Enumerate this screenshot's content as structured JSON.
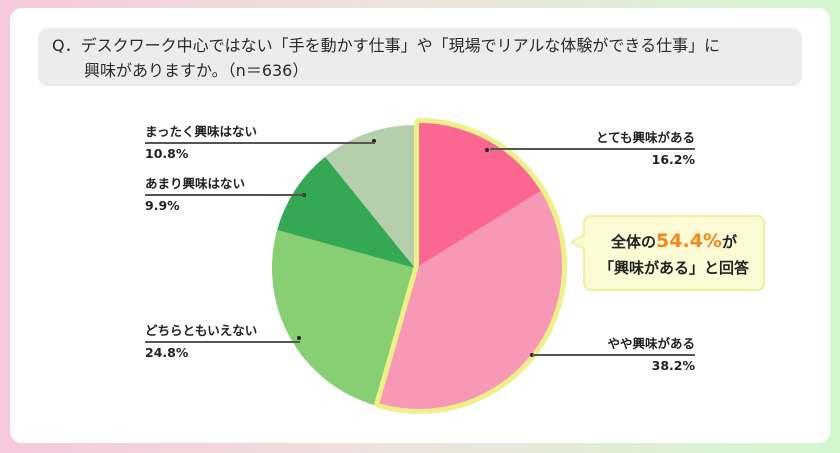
{
  "question": {
    "line1": "Q．デスクワーク中心ではない「手を動かす仕事」や「現場でリアルな体験ができる仕事」に",
    "line2": "興味がありますか。（n＝636）"
  },
  "callout": {
    "prefix": "全体の",
    "highlight": "54.4%",
    "suffix": "が",
    "line2": "「興味がある」と回答",
    "highlight_color": "#f2891c"
  },
  "chart_data": {
    "type": "pie",
    "title": "デスクワーク中心ではない「手を動かす仕事」や「現場でリアルな体験ができる仕事」に興味がありますか。",
    "n": 636,
    "start_angle": "12 o'clock, clockwise",
    "categories": [
      "とても興味がある",
      "やや興味がある",
      "どちらともいえない",
      "あまり興味はない",
      "まったく興味はない"
    ],
    "values": [
      16.2,
      38.2,
      24.8,
      9.9,
      10.8
    ],
    "unit": "%",
    "colors": [
      "#fb6790",
      "#f799b6",
      "#88ce72",
      "#34a853",
      "#b5cfac"
    ],
    "highlighted": [
      "とても興味がある",
      "やや興味がある"
    ],
    "highlight_border_color": "#eef08a",
    "annotation": "全体の54.4%が「興味がある」と回答"
  },
  "labels": [
    {
      "name": "とても興味がある",
      "value": "16.2%"
    },
    {
      "name": "やや興味がある",
      "value": "38.2%"
    },
    {
      "name": "どちらともいえない",
      "value": "24.8%"
    },
    {
      "name": "あまり興味はない",
      "value": "9.9%"
    },
    {
      "name": "まったく興味はない",
      "value": "10.8%"
    }
  ]
}
